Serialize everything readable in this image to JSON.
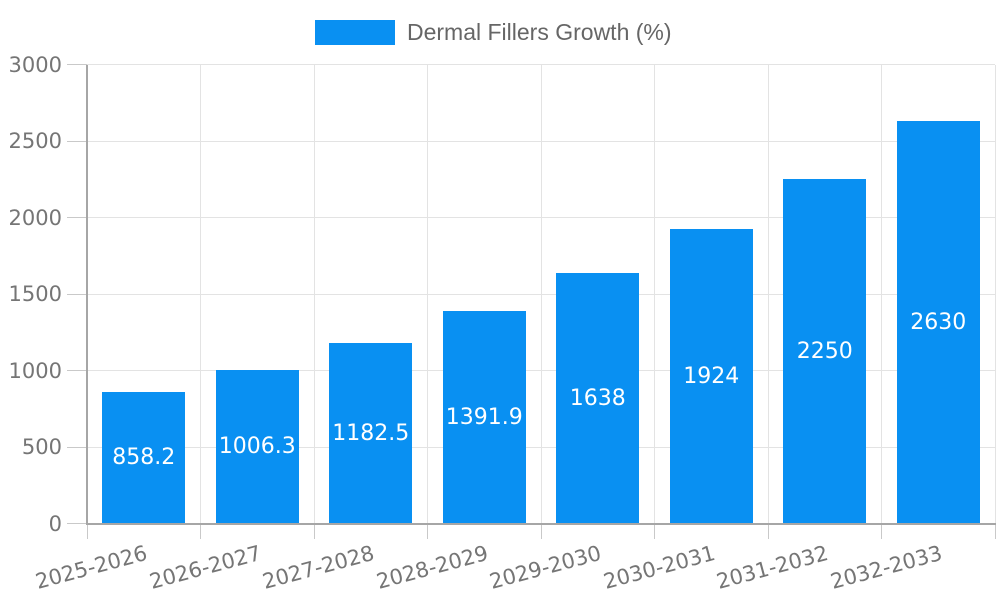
{
  "chart_data": {
    "type": "bar",
    "title": "",
    "categories": [
      "2025-2026",
      "2026-2027",
      "2027-2028",
      "2028-2029",
      "2029-2030",
      "2030-2031",
      "2031-2032",
      "2032-2033"
    ],
    "series": [
      {
        "name": "Dermal Fillers Growth (%)",
        "values": [
          858.2,
          1006.3,
          1182.5,
          1391.9,
          1638,
          1924,
          2250,
          2630
        ]
      }
    ],
    "value_labels": [
      "858.2",
      "1006.3",
      "1182.5",
      "1391.9",
      "1638",
      "1924",
      "2250",
      "2630"
    ],
    "xlabel": "",
    "ylabel": "",
    "ylim": [
      0,
      3000
    ],
    "yticks": [
      0,
      500,
      1000,
      1500,
      2000,
      2500,
      3000
    ],
    "grid": true,
    "legend_position": "top-center",
    "value_labels_inside_bars": true
  },
  "colors": {
    "bar": "#0990f2",
    "grid": "#e3e3e3",
    "axis": "#a6a6a6",
    "tick": "#c9c9c9",
    "tick_label": "#757575",
    "legend_text": "#666666",
    "value_label": "#ffffff",
    "background": "#ffffff"
  }
}
